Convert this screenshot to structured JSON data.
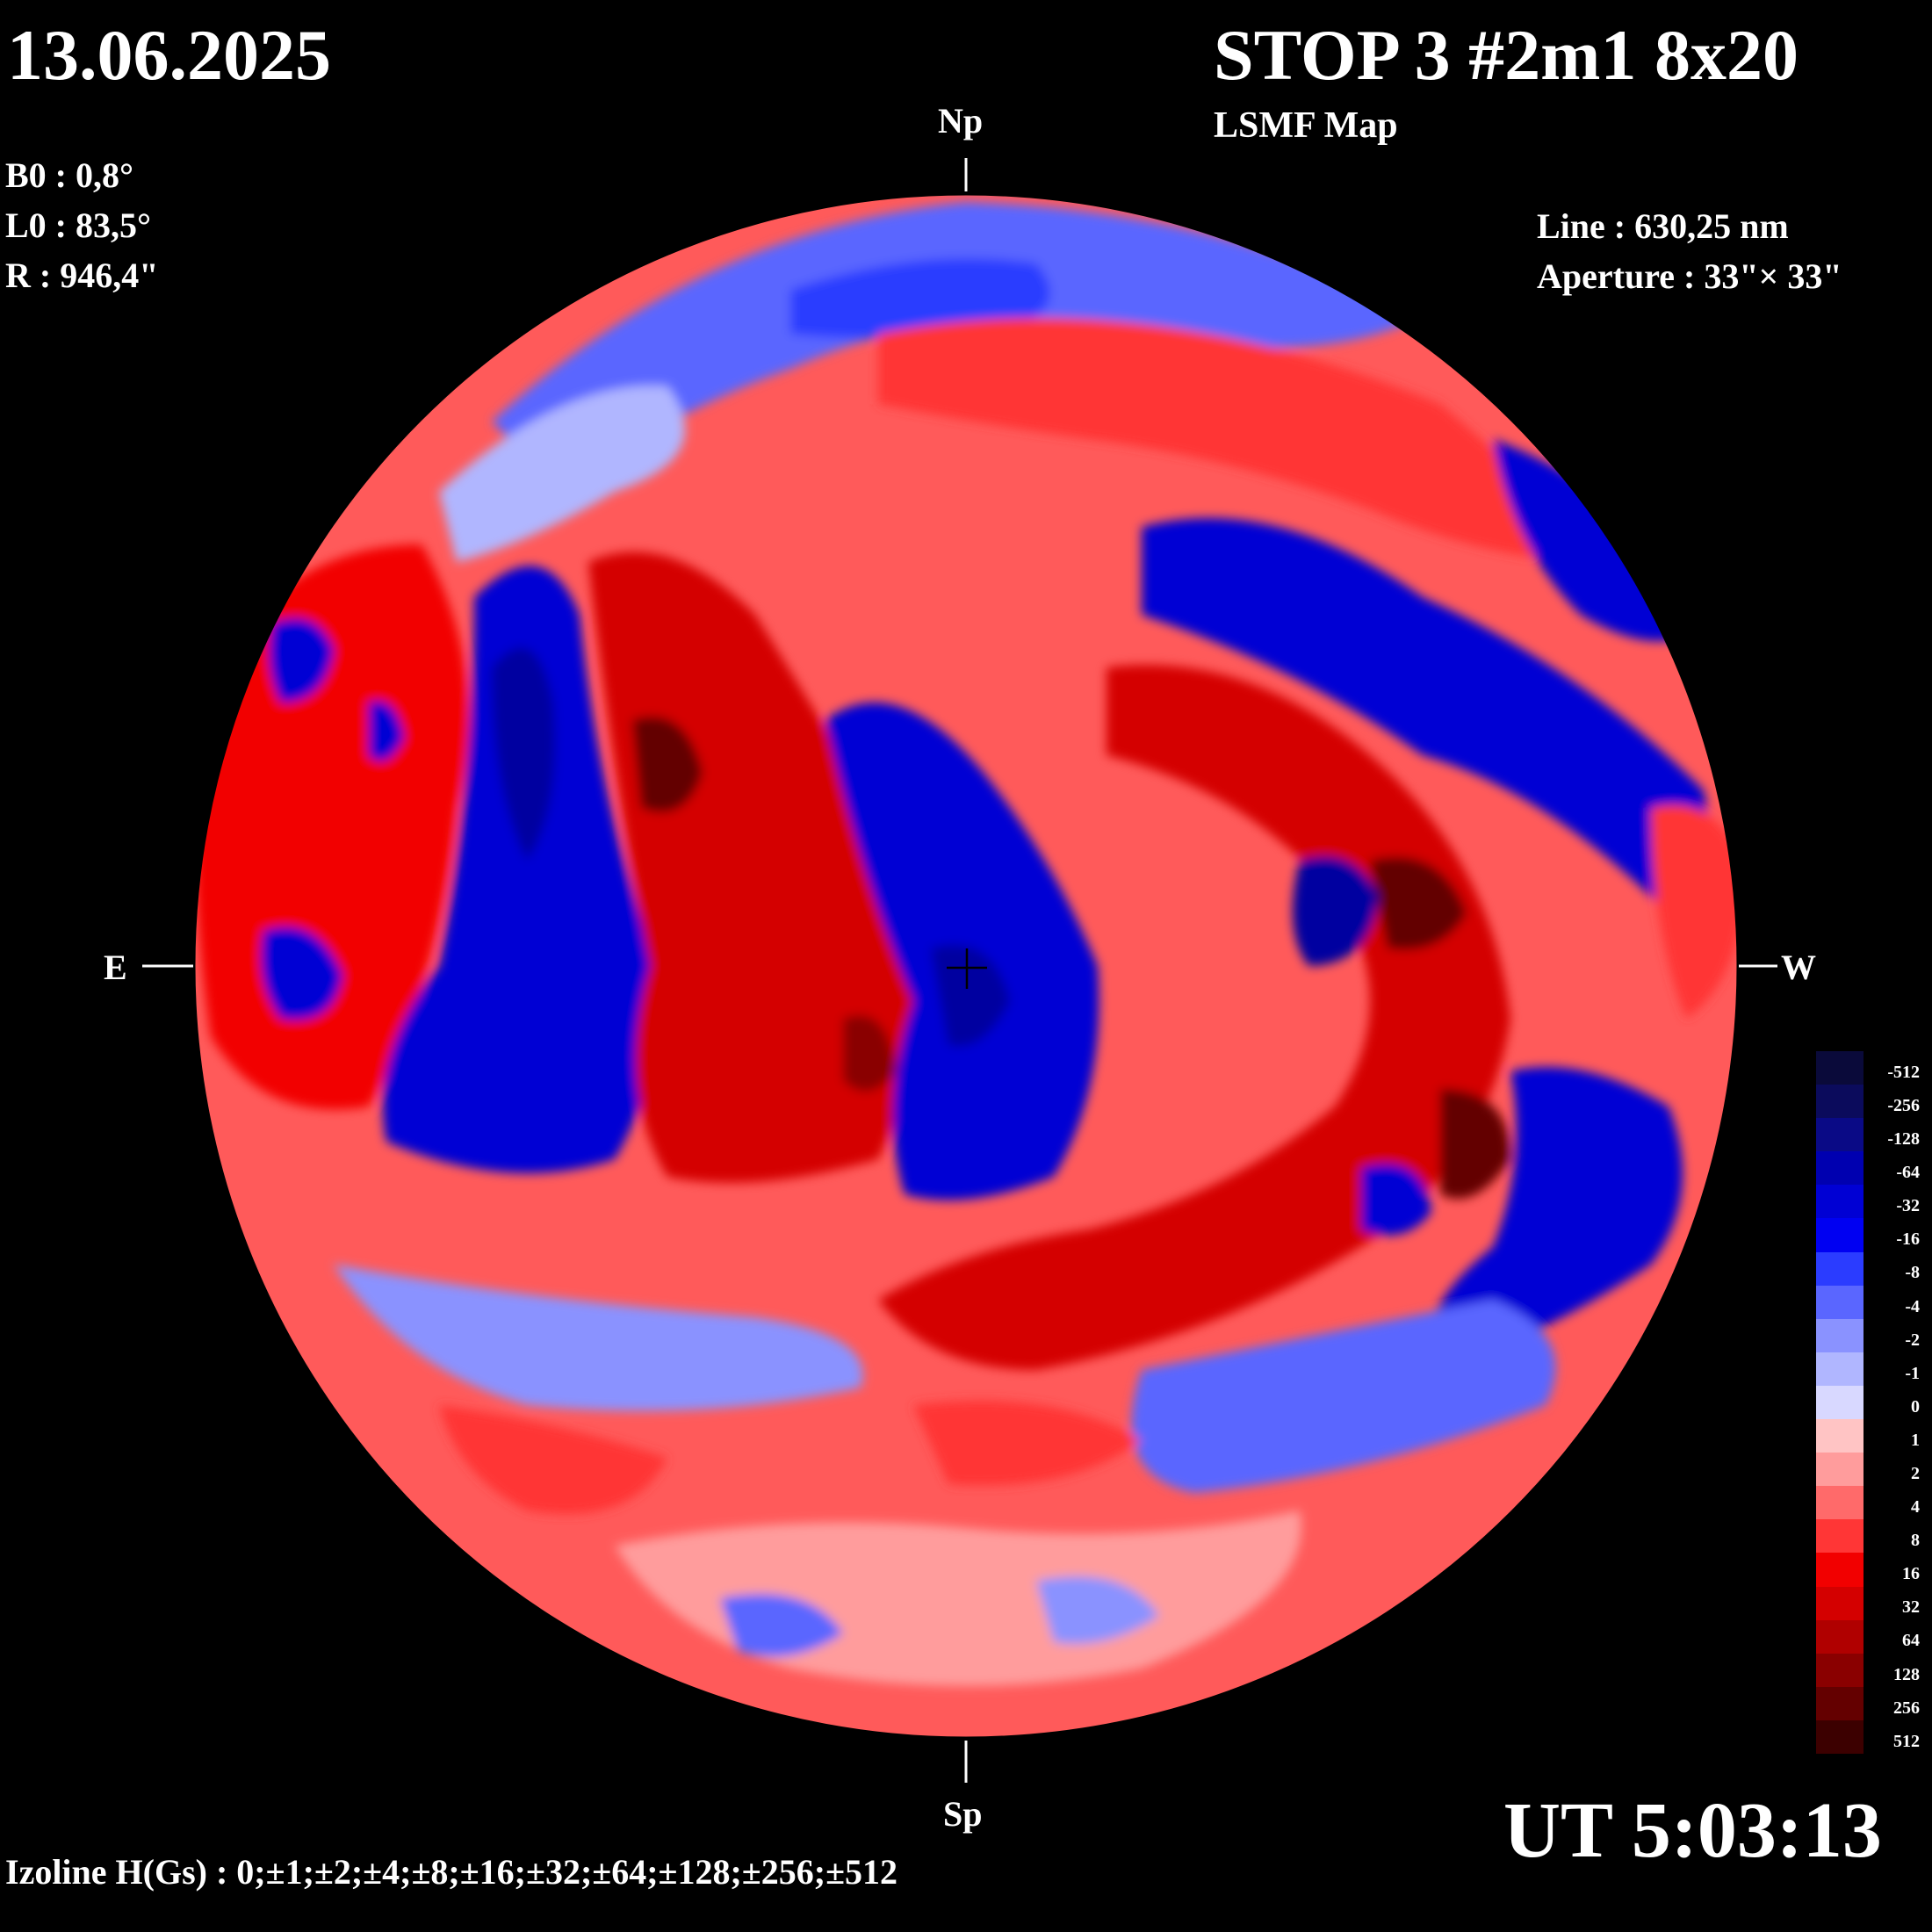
{
  "header": {
    "date": "13.06.2025",
    "station": "STOP 3 #2m1 8x20",
    "map_type": "LSMF  Map"
  },
  "params": {
    "b0": "B0 : 0,8°",
    "l0": "L0 : 83,5°",
    "r": "R  : 946,4\"",
    "line": "Line :  630,25 nm",
    "aperture": "Aperture : 33\"× 33\""
  },
  "compass": {
    "north": "Np",
    "south": "Sp",
    "east": "E",
    "west": "W"
  },
  "footer": {
    "izoline": "Izoline H(Gs) : 0;±1;±2;±4;±8;±16;±32;±64;±128;±256;±512",
    "ut": "UT 5:03:13"
  },
  "legend": [
    {
      "label": "-512",
      "color": "#0a0a3a"
    },
    {
      "label": "-256",
      "color": "#0b0b5c"
    },
    {
      "label": "-128",
      "color": "#0a0a86"
    },
    {
      "label": "-64",
      "color": "#0000b0"
    },
    {
      "label": "-32",
      "color": "#0000d4"
    },
    {
      "label": "-16",
      "color": "#0000f2"
    },
    {
      "label": "-8",
      "color": "#2b3cff"
    },
    {
      "label": "-4",
      "color": "#5a66ff"
    },
    {
      "label": "-2",
      "color": "#8a92ff"
    },
    {
      "label": "-1",
      "color": "#b0b6ff"
    },
    {
      "label": "0",
      "color": "#d8d8ff"
    },
    {
      "label": "1",
      "color": "#ffc4c4"
    },
    {
      "label": "2",
      "color": "#ff9c9c"
    },
    {
      "label": "4",
      "color": "#ff6a6a"
    },
    {
      "label": "8",
      "color": "#ff3636"
    },
    {
      "label": "16",
      "color": "#f20000"
    },
    {
      "label": "32",
      "color": "#d40000"
    },
    {
      "label": "64",
      "color": "#b00000"
    },
    {
      "label": "128",
      "color": "#8a0000"
    },
    {
      "label": "256",
      "color": "#640000"
    },
    {
      "label": "512",
      "color": "#3c0000"
    }
  ]
}
